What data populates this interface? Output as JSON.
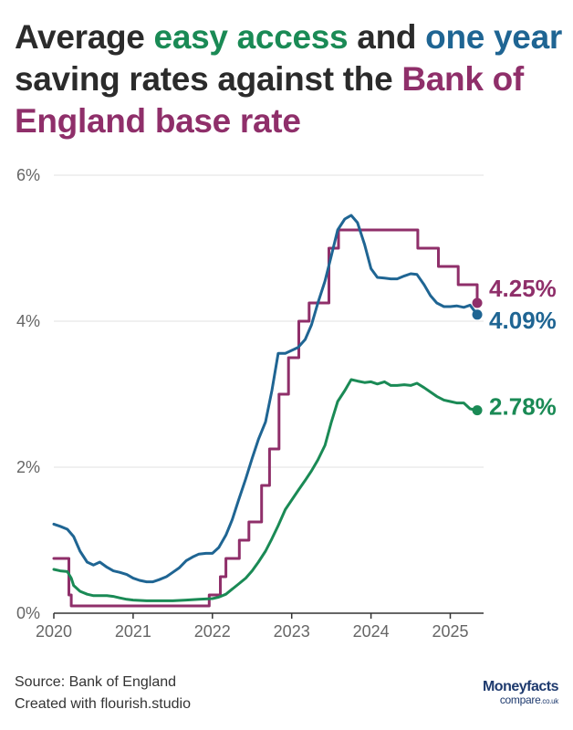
{
  "title": {
    "part1": "Average ",
    "part2": "easy access",
    "part3": " and ",
    "part4": "one year",
    "part5": " saving rates against the ",
    "part6": "Bank of England base rate"
  },
  "colors": {
    "easy_access": "#1a8a55",
    "one_year": "#1f6593",
    "base_rate": "#8f2f6a"
  },
  "footer": {
    "source": "Source: Bank of England",
    "created": "Created with flourish.studio"
  },
  "logo": {
    "top": "Moneyfacts",
    "bottom": "compare",
    "suffix": ".co.uk"
  },
  "chart_data": {
    "type": "line",
    "title": "Average easy access and one year saving rates against the Bank of England base rate",
    "xlabel": "",
    "ylabel": "",
    "xlim": [
      2020.0,
      2025.42
    ],
    "ylim": [
      0,
      6
    ],
    "x_ticks": [
      2020,
      2021,
      2022,
      2023,
      2024,
      2025
    ],
    "y_ticks": [
      {
        "value": 0,
        "label": "0%"
      },
      {
        "value": 2,
        "label": "2%"
      },
      {
        "value": 4,
        "label": "4%"
      },
      {
        "value": 6,
        "label": "6%"
      }
    ],
    "grid": true,
    "series": [
      {
        "name": "Bank of England base rate",
        "key": "base_rate",
        "step": true,
        "end_label": "4.25%",
        "points": [
          [
            2020.0,
            0.75
          ],
          [
            2020.19,
            0.25
          ],
          [
            2020.22,
            0.1
          ],
          [
            2021.96,
            0.25
          ],
          [
            2022.1,
            0.5
          ],
          [
            2022.17,
            0.75
          ],
          [
            2022.34,
            1.0
          ],
          [
            2022.46,
            1.25
          ],
          [
            2022.62,
            1.75
          ],
          [
            2022.72,
            2.25
          ],
          [
            2022.84,
            3.0
          ],
          [
            2022.96,
            3.5
          ],
          [
            2023.09,
            4.0
          ],
          [
            2023.22,
            4.25
          ],
          [
            2023.47,
            4.5
          ],
          [
            2023.47,
            5.0
          ],
          [
            2023.59,
            5.25
          ],
          [
            2024.59,
            5.0
          ],
          [
            2024.85,
            4.75
          ],
          [
            2025.1,
            4.5
          ],
          [
            2025.34,
            4.25
          ]
        ]
      },
      {
        "name": "One year fixed",
        "key": "one_year",
        "step": false,
        "end_label": "4.09%",
        "points": [
          [
            2020.0,
            1.22
          ],
          [
            2020.08,
            1.19
          ],
          [
            2020.17,
            1.15
          ],
          [
            2020.25,
            1.05
          ],
          [
            2020.33,
            0.85
          ],
          [
            2020.42,
            0.7
          ],
          [
            2020.5,
            0.66
          ],
          [
            2020.58,
            0.7
          ],
          [
            2020.67,
            0.63
          ],
          [
            2020.75,
            0.58
          ],
          [
            2020.83,
            0.56
          ],
          [
            2020.92,
            0.53
          ],
          [
            2021.0,
            0.48
          ],
          [
            2021.08,
            0.45
          ],
          [
            2021.17,
            0.43
          ],
          [
            2021.25,
            0.43
          ],
          [
            2021.33,
            0.46
          ],
          [
            2021.42,
            0.5
          ],
          [
            2021.5,
            0.56
          ],
          [
            2021.58,
            0.62
          ],
          [
            2021.67,
            0.72
          ],
          [
            2021.75,
            0.77
          ],
          [
            2021.83,
            0.81
          ],
          [
            2021.92,
            0.82
          ],
          [
            2022.0,
            0.82
          ],
          [
            2022.08,
            0.9
          ],
          [
            2022.17,
            1.07
          ],
          [
            2022.25,
            1.28
          ],
          [
            2022.33,
            1.55
          ],
          [
            2022.42,
            1.84
          ],
          [
            2022.5,
            2.12
          ],
          [
            2022.58,
            2.38
          ],
          [
            2022.67,
            2.62
          ],
          [
            2022.75,
            3.05
          ],
          [
            2022.83,
            3.56
          ],
          [
            2022.92,
            3.56
          ],
          [
            2023.0,
            3.6
          ],
          [
            2023.08,
            3.64
          ],
          [
            2023.17,
            3.75
          ],
          [
            2023.25,
            3.95
          ],
          [
            2023.33,
            4.25
          ],
          [
            2023.42,
            4.55
          ],
          [
            2023.5,
            4.9
          ],
          [
            2023.58,
            5.25
          ],
          [
            2023.67,
            5.4
          ],
          [
            2023.75,
            5.45
          ],
          [
            2023.83,
            5.35
          ],
          [
            2023.92,
            5.05
          ],
          [
            2024.0,
            4.72
          ],
          [
            2024.08,
            4.6
          ],
          [
            2024.17,
            4.59
          ],
          [
            2024.25,
            4.58
          ],
          [
            2024.33,
            4.58
          ],
          [
            2024.42,
            4.62
          ],
          [
            2024.5,
            4.65
          ],
          [
            2024.58,
            4.64
          ],
          [
            2024.67,
            4.5
          ],
          [
            2024.75,
            4.35
          ],
          [
            2024.83,
            4.25
          ],
          [
            2024.92,
            4.2
          ],
          [
            2025.0,
            4.2
          ],
          [
            2025.08,
            4.21
          ],
          [
            2025.17,
            4.19
          ],
          [
            2025.25,
            4.22
          ],
          [
            2025.34,
            4.09
          ]
        ]
      },
      {
        "name": "Easy access",
        "key": "easy_access",
        "step": false,
        "end_label": "2.78%",
        "points": [
          [
            2020.0,
            0.6
          ],
          [
            2020.08,
            0.58
          ],
          [
            2020.17,
            0.57
          ],
          [
            2020.22,
            0.48
          ],
          [
            2020.25,
            0.38
          ],
          [
            2020.33,
            0.3
          ],
          [
            2020.42,
            0.26
          ],
          [
            2020.5,
            0.24
          ],
          [
            2020.58,
            0.24
          ],
          [
            2020.67,
            0.24
          ],
          [
            2020.75,
            0.23
          ],
          [
            2020.83,
            0.21
          ],
          [
            2020.92,
            0.19
          ],
          [
            2021.0,
            0.18
          ],
          [
            2021.17,
            0.17
          ],
          [
            2021.33,
            0.17
          ],
          [
            2021.5,
            0.17
          ],
          [
            2021.67,
            0.18
          ],
          [
            2021.83,
            0.19
          ],
          [
            2022.0,
            0.2
          ],
          [
            2022.08,
            0.22
          ],
          [
            2022.17,
            0.26
          ],
          [
            2022.25,
            0.33
          ],
          [
            2022.33,
            0.4
          ],
          [
            2022.42,
            0.48
          ],
          [
            2022.5,
            0.58
          ],
          [
            2022.58,
            0.7
          ],
          [
            2022.67,
            0.85
          ],
          [
            2022.75,
            1.02
          ],
          [
            2022.83,
            1.2
          ],
          [
            2022.92,
            1.42
          ],
          [
            2023.0,
            1.55
          ],
          [
            2023.08,
            1.68
          ],
          [
            2023.17,
            1.82
          ],
          [
            2023.25,
            1.95
          ],
          [
            2023.33,
            2.1
          ],
          [
            2023.42,
            2.3
          ],
          [
            2023.5,
            2.62
          ],
          [
            2023.58,
            2.9
          ],
          [
            2023.67,
            3.05
          ],
          [
            2023.75,
            3.2
          ],
          [
            2023.83,
            3.18
          ],
          [
            2023.92,
            3.16
          ],
          [
            2024.0,
            3.17
          ],
          [
            2024.08,
            3.14
          ],
          [
            2024.17,
            3.17
          ],
          [
            2024.25,
            3.12
          ],
          [
            2024.33,
            3.12
          ],
          [
            2024.42,
            3.13
          ],
          [
            2024.5,
            3.12
          ],
          [
            2024.58,
            3.15
          ],
          [
            2024.67,
            3.09
          ],
          [
            2024.75,
            3.03
          ],
          [
            2024.83,
            2.97
          ],
          [
            2024.92,
            2.92
          ],
          [
            2025.0,
            2.9
          ],
          [
            2025.08,
            2.88
          ],
          [
            2025.17,
            2.88
          ],
          [
            2025.25,
            2.8
          ],
          [
            2025.34,
            2.78
          ]
        ]
      }
    ]
  }
}
